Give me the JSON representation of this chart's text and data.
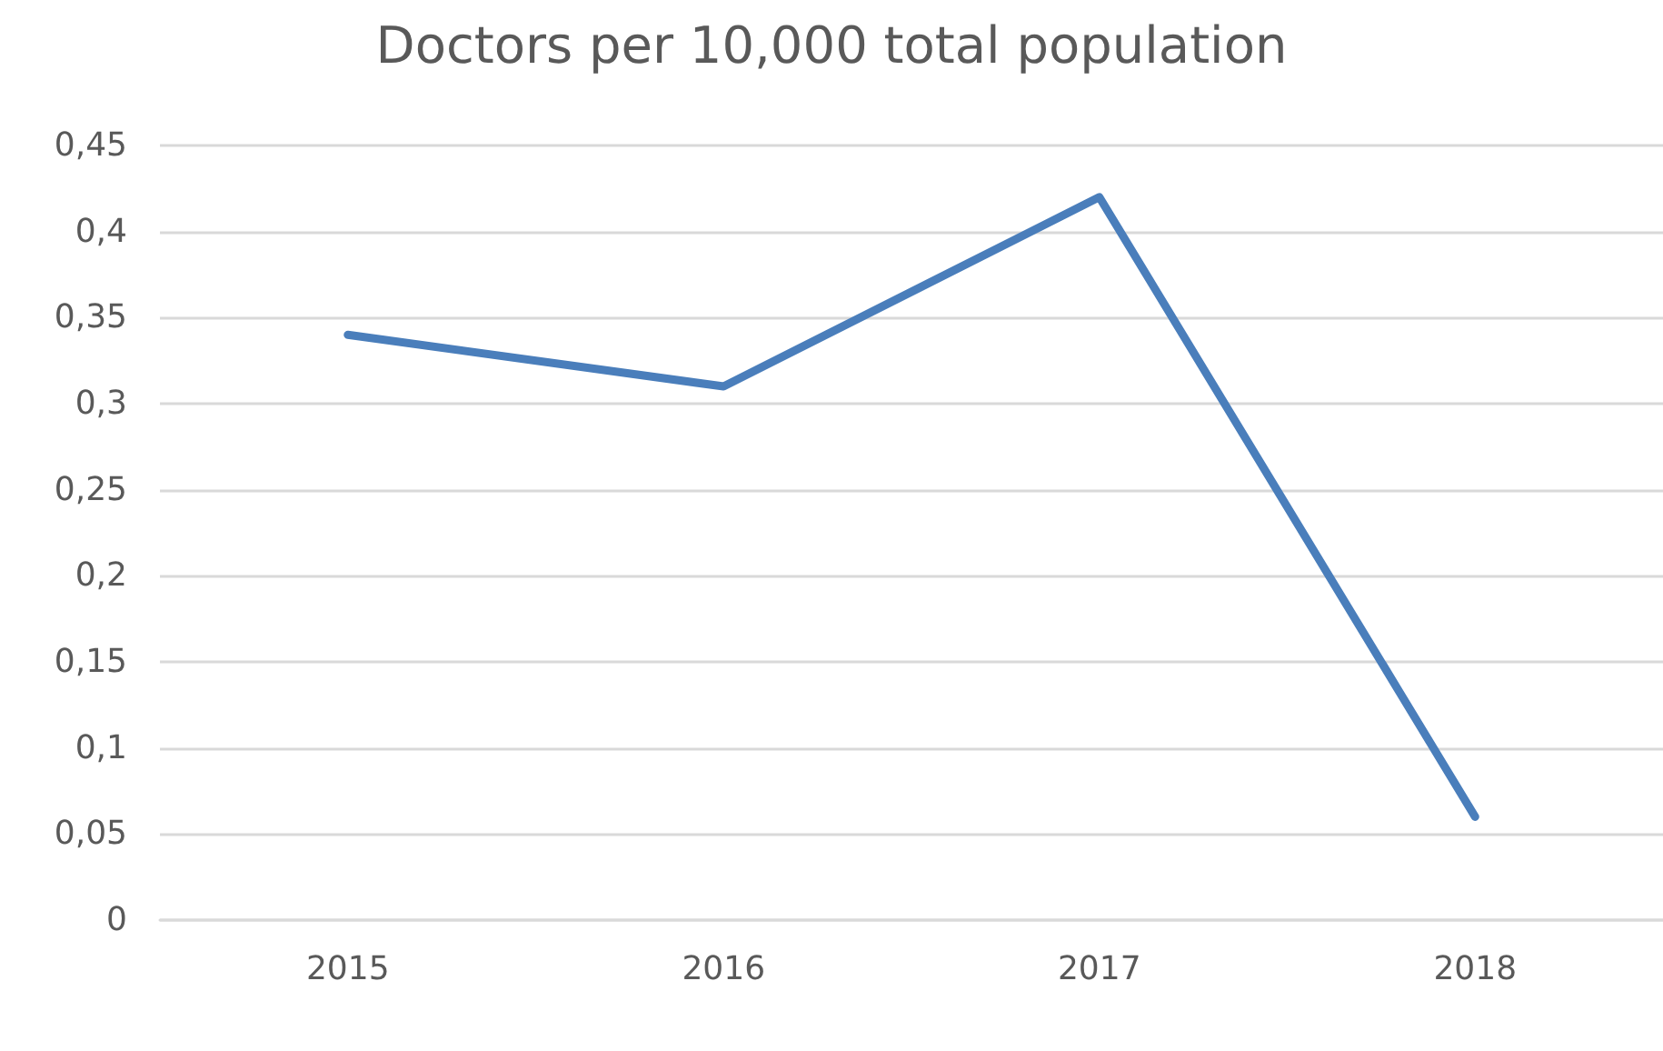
{
  "chart_data": {
    "type": "line",
    "title": "Doctors per 10,000 total population",
    "categories": [
      "2015",
      "2016",
      "2017",
      "2018"
    ],
    "series": [
      {
        "color": "#4a7ebb",
        "values": [
          0.34,
          0.31,
          0.42,
          0.06
        ]
      }
    ],
    "ylim": [
      0,
      0.45
    ],
    "yticks": [
      0,
      {
        "value": 0.05,
        "label": "0,05"
      },
      {
        "value": 0.1,
        "label": "0,1"
      },
      {
        "value": 0.15,
        "label": "0,15"
      },
      {
        "value": 0.2,
        "label": "0,2"
      },
      {
        "value": 0.25,
        "label": "0,25"
      },
      {
        "value": 0.3,
        "label": "0,3"
      },
      {
        "value": 0.35,
        "label": "0,35"
      },
      {
        "value": 0.4,
        "label": "0,4"
      },
      {
        "value": 0.45,
        "label": "0,45"
      }
    ],
    "grid": "y",
    "marker": "none",
    "line_style": "solid"
  }
}
